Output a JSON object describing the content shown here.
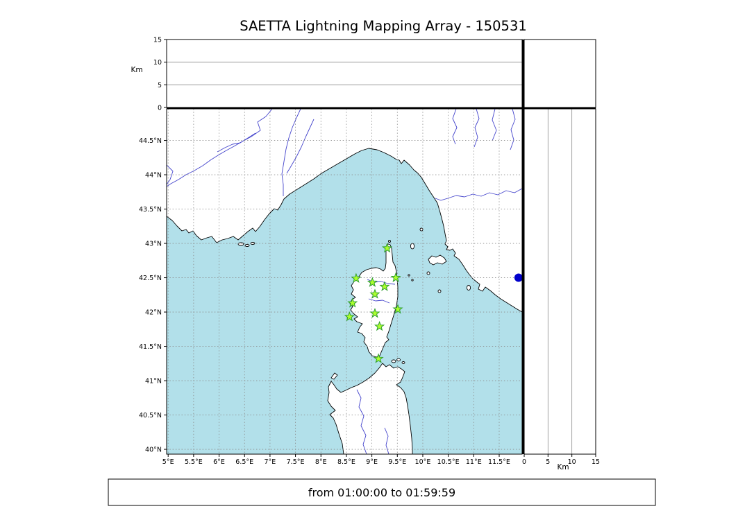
{
  "colors": {
    "sea": "#b2e0ea",
    "land": "#ffffff",
    "coast": "#000000",
    "river": "#4444cc",
    "grid": "#8c8c8c",
    "station_fill": "#adff2f",
    "station_edge": "#2f9e2f",
    "dot": "#0000cc"
  },
  "chart_data": {
    "type": "scatter",
    "title": "SAETTA Lightning Mapping Array - 150531",
    "footer": "from 01:00:00 to 01:59:59",
    "map_panel": {
      "description": "geographic map of Corsica / Ligurian-Tyrrhenian sea with LMA station locations",
      "xlim": [
        4.97,
        11.95
      ],
      "ylim": [
        39.93,
        44.96
      ],
      "grid": "dashed",
      "lon_ticks": [
        {
          "value": 5.0,
          "label": "5°E"
        },
        {
          "value": 5.5,
          "label": "5.5°E"
        },
        {
          "value": 6.0,
          "label": "6°E"
        },
        {
          "value": 6.5,
          "label": "6.5°E"
        },
        {
          "value": 7.0,
          "label": "7°E"
        },
        {
          "value": 7.5,
          "label": "7.5°E"
        },
        {
          "value": 8.0,
          "label": "8°E"
        },
        {
          "value": 8.5,
          "label": "8.5°E"
        },
        {
          "value": 9.0,
          "label": "9°E"
        },
        {
          "value": 9.5,
          "label": "9.5°E"
        },
        {
          "value": 10.0,
          "label": "10°E"
        },
        {
          "value": 10.5,
          "label": "10.5°E"
        },
        {
          "value": 11.0,
          "label": "11°E"
        },
        {
          "value": 11.5,
          "label": "11.5°E"
        }
      ],
      "lat_ticks": [
        {
          "value": 40.0,
          "label": "40°N"
        },
        {
          "value": 40.5,
          "label": "40.5°N"
        },
        {
          "value": 41.0,
          "label": "41°N"
        },
        {
          "value": 41.5,
          "label": "41.5°N"
        },
        {
          "value": 42.0,
          "label": "42°N"
        },
        {
          "value": 42.5,
          "label": "42.5°N"
        },
        {
          "value": 43.0,
          "label": "43°N"
        },
        {
          "value": 43.5,
          "label": "43.5°N"
        },
        {
          "value": 44.0,
          "label": "44°N"
        },
        {
          "value": 44.5,
          "label": "44.5°N"
        }
      ],
      "stations": [
        {
          "lon": 9.3,
          "lat": 42.93
        },
        {
          "lon": 8.69,
          "lat": 42.49
        },
        {
          "lon": 9.01,
          "lat": 42.43
        },
        {
          "lon": 9.47,
          "lat": 42.5
        },
        {
          "lon": 9.25,
          "lat": 42.37
        },
        {
          "lon": 9.06,
          "lat": 42.26
        },
        {
          "lon": 8.62,
          "lat": 42.13
        },
        {
          "lon": 9.51,
          "lat": 42.04
        },
        {
          "lon": 8.56,
          "lat": 41.93
        },
        {
          "lon": 9.06,
          "lat": 41.98
        },
        {
          "lon": 9.15,
          "lat": 41.79
        },
        {
          "lon": 9.13,
          "lat": 41.32
        }
      ],
      "point": {
        "lon": 11.88,
        "lat": 42.5,
        "shape": "circle",
        "color": "#0000cc"
      }
    },
    "altitude_panel_top": {
      "ylabel": "Km",
      "ylim": [
        0,
        15
      ],
      "yticks": [
        {
          "value": 0,
          "label": "0"
        },
        {
          "value": 5,
          "label": "5"
        },
        {
          "value": 10,
          "label": "10"
        },
        {
          "value": 15,
          "label": "15"
        }
      ],
      "gridlines": [
        5,
        10
      ],
      "points": []
    },
    "altitude_panel_right": {
      "xlabel": "Km",
      "xlim": [
        0,
        15
      ],
      "xticks": [
        {
          "value": 0,
          "label": "0"
        },
        {
          "value": 5,
          "label": "5"
        },
        {
          "value": 10,
          "label": "10"
        },
        {
          "value": 15,
          "label": "15"
        }
      ],
      "gridlines": [
        5,
        10
      ],
      "points": []
    }
  }
}
